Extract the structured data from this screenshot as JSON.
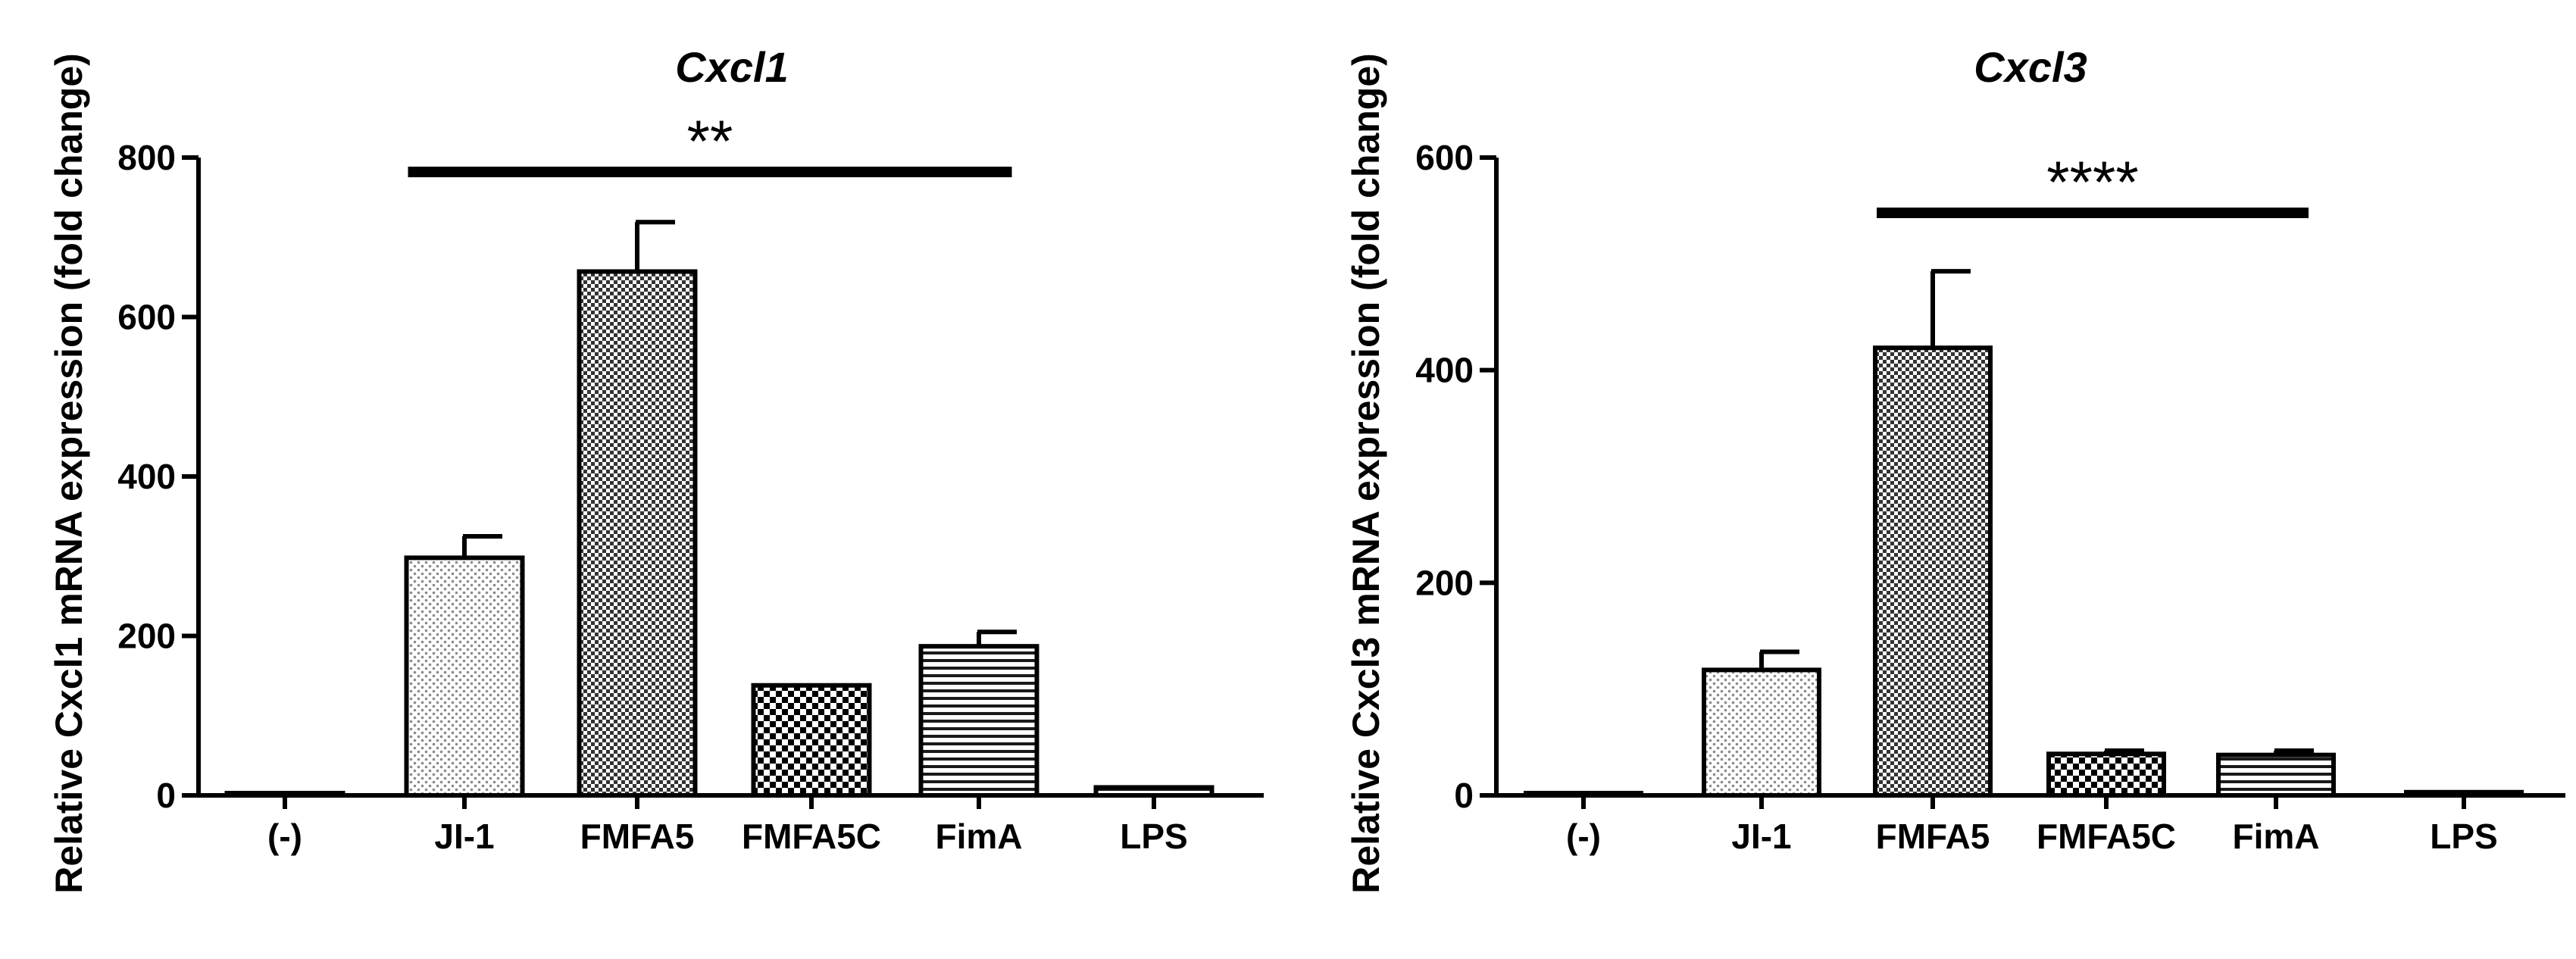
{
  "chart_data": [
    {
      "type": "bar",
      "title": "Cxcl1",
      "xlabel": "",
      "ylabel": "Relative Cxcl1 mRNA expression (fold change)",
      "categories": [
        "(-)",
        "JI-1",
        "FMFA5",
        "FMFA5C",
        "FimA",
        "LPS"
      ],
      "values": [
        1,
        298,
        657,
        138,
        187,
        10
      ],
      "errors": [
        0,
        27,
        62,
        0,
        18,
        0
      ],
      "patterns": [
        "none",
        "light-dots",
        "dark-check",
        "checker",
        "hlines",
        "hlines"
      ],
      "ylim": [
        0,
        800
      ],
      "yticks": [
        "0",
        "200",
        "400",
        "600",
        "800"
      ],
      "significance": {
        "label": "**",
        "from": "JI-1",
        "to": "FimA",
        "y": 782
      },
      "grid": false,
      "legend": "none"
    },
    {
      "type": "bar",
      "title": "Cxcl3",
      "xlabel": "",
      "ylabel": "Relative Cxcl3 mRNA expression (fold change)",
      "categories": [
        "(-)",
        "JI-1",
        "FMFA5",
        "FMFA5C",
        "FimA",
        "LPS"
      ],
      "values": [
        1,
        118,
        421,
        39,
        38,
        3
      ],
      "errors": [
        0,
        17,
        72,
        3,
        4,
        0
      ],
      "patterns": [
        "none",
        "light-dots",
        "dark-check",
        "checker",
        "hlines",
        "hlines"
      ],
      "ylim": [
        0,
        600
      ],
      "yticks": [
        "0",
        "200",
        "400",
        "600"
      ],
      "significance": {
        "label": "****",
        "from": "FMFA5",
        "to": "FimA",
        "y": 548
      },
      "grid": false,
      "legend": "none"
    }
  ]
}
